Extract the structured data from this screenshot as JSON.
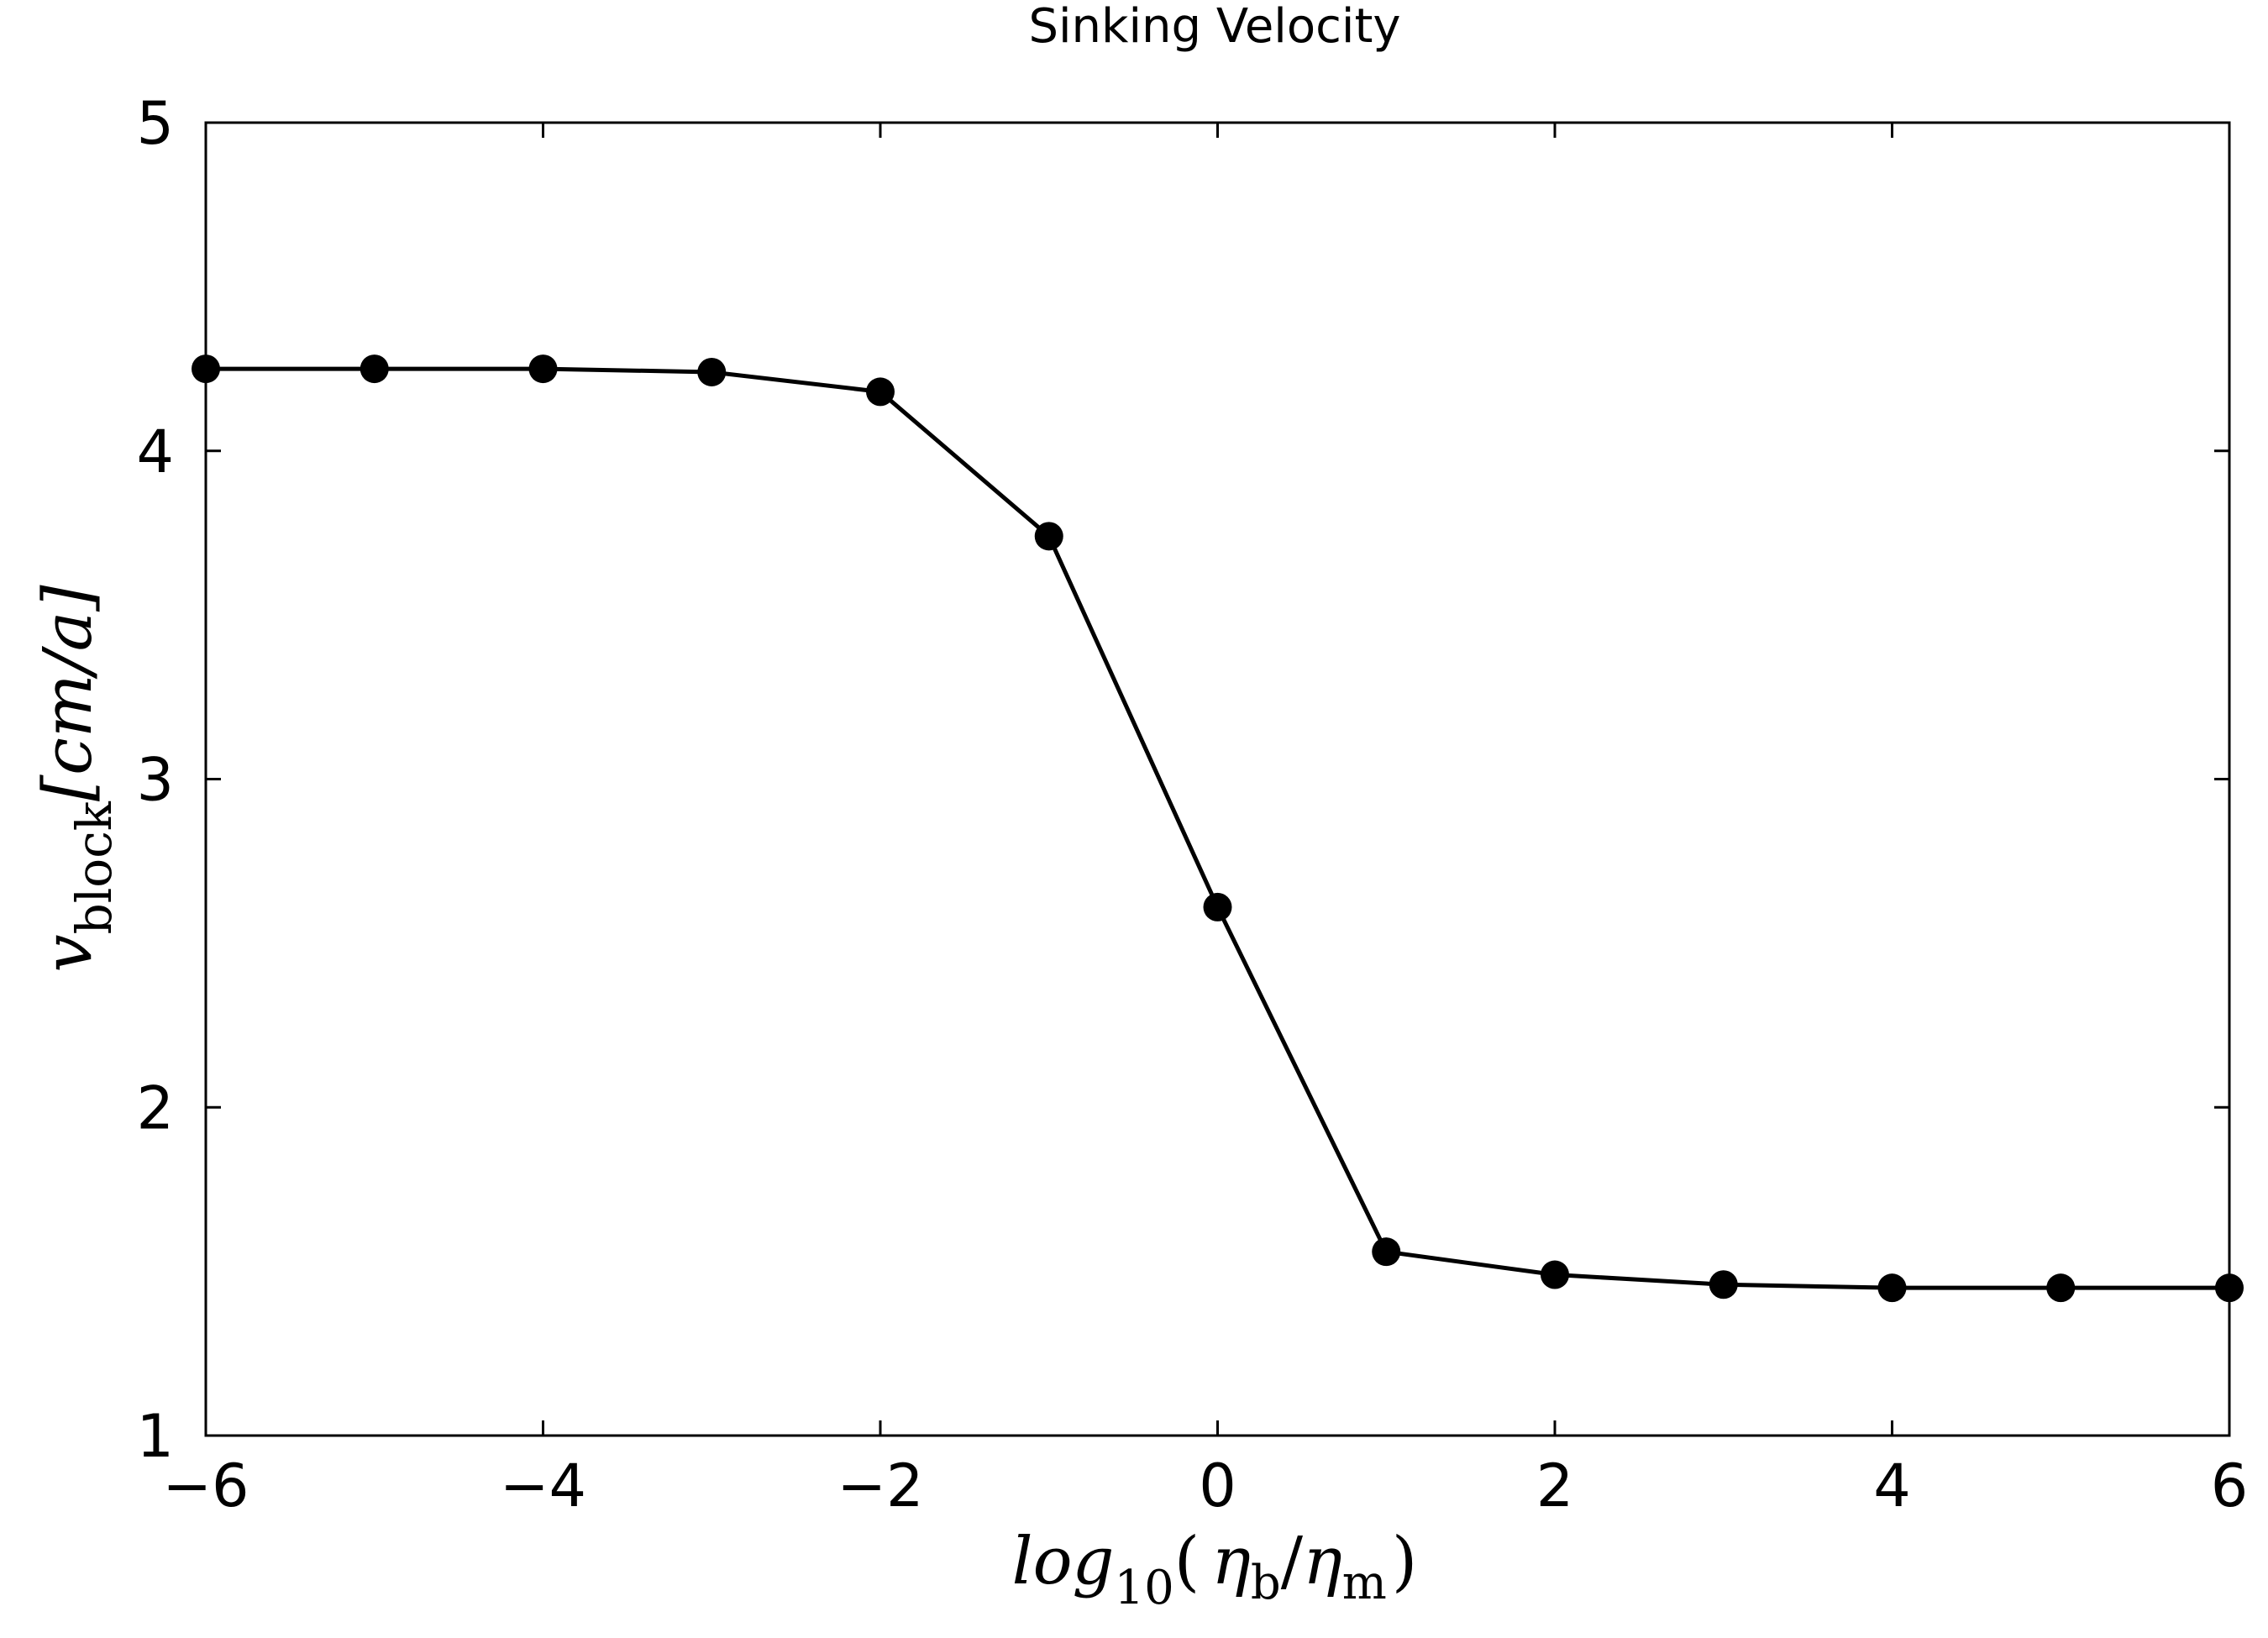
{
  "chart_data": {
    "type": "line",
    "title": "Sinking Velocity",
    "xlabel": {
      "text": "log",
      "sub": "10",
      "open": "(",
      "num": "η",
      "num_sub": "b",
      "slash": "/",
      "den": "η",
      "den_sub": "m",
      "close": ")"
    },
    "ylabel": {
      "text": "v",
      "sub": "block",
      "unit": "[cm/a]"
    },
    "xlim": [
      -6,
      6
    ],
    "ylim": [
      1,
      5
    ],
    "xticks": [
      -6,
      -4,
      -2,
      0,
      2,
      4,
      6
    ],
    "xtick_labels": [
      "−6",
      "−4",
      "−2",
      "0",
      "2",
      "4",
      "6"
    ],
    "yticks": [
      1,
      2,
      3,
      4,
      5
    ],
    "ytick_labels": [
      "1",
      "2",
      "3",
      "4",
      "5"
    ],
    "grid": false,
    "series": [
      {
        "color": "#000000",
        "marker": "circle",
        "x": [
          -6,
          -5,
          -4,
          -3,
          -2,
          -1,
          0,
          1,
          2,
          3,
          4,
          5,
          6
        ],
        "y": [
          4.25,
          4.25,
          4.25,
          4.24,
          4.18,
          3.74,
          2.61,
          1.56,
          1.49,
          1.46,
          1.45,
          1.45,
          1.45
        ]
      }
    ]
  }
}
